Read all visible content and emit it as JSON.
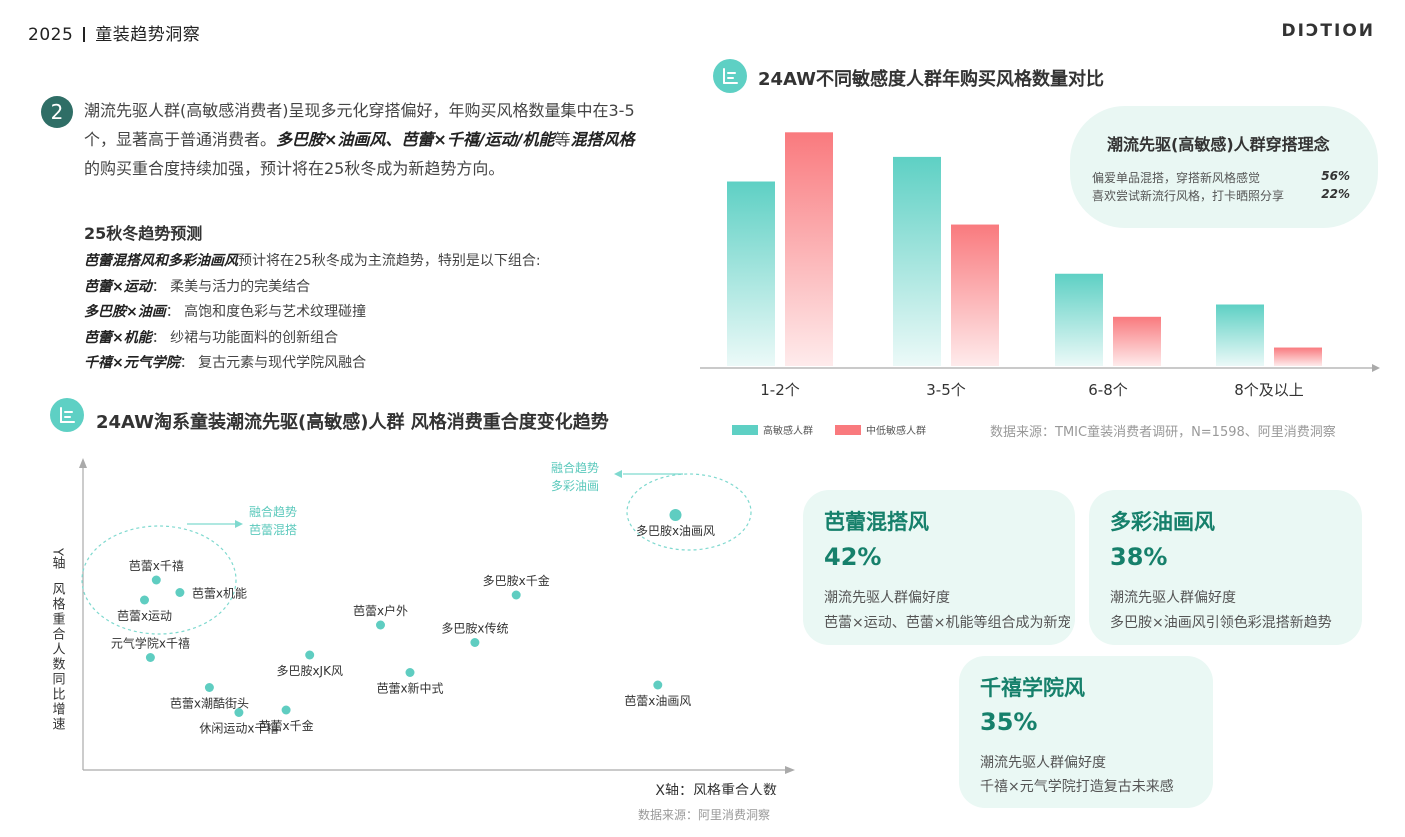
{
  "header": {
    "year": "2025",
    "section": "童装趋势洞察",
    "brand": "DIƆTIOИ"
  },
  "intro": {
    "badge": "2",
    "text_1": "潮流先驱人群(高敏感消费者)呈现多元化穿搭偏好，年购买风格数量集中在3-5个，显著高于普通消费者。",
    "bold_1": "多巴胺×油画风、芭蕾×千禧/运动/机能",
    "text_2": "等",
    "bold_2": "混搭风格",
    "text_3": "的购买重合度持续加强，预计将在25秋冬成为新趋势方向。"
  },
  "forecast": {
    "title": "25秋冬趋势预测",
    "lead_bold": "芭蕾混搭风和多彩油画风",
    "lead_text": "预计将在25秋冬成为主流趋势，特别是以下组合:",
    "items": [
      {
        "name": "芭蕾×运动",
        "desc": "：  柔美与活力的完美结合"
      },
      {
        "name": "多巴胺×油画",
        "desc": "：  高饱和度色彩与艺术纹理碰撞"
      },
      {
        "name": "芭蕾×机能",
        "desc": "：  纱裙与功能面料的创新组合"
      },
      {
        "name": "千禧×元气学院",
        "desc": "：  复古元素与现代学院风融合"
      }
    ]
  },
  "bar_section": {
    "title": "24AW不同敏感度人群年购买风格数量对比",
    "source": "数据来源：TMIC童装消费者调研，N=1598、阿里消费洞察"
  },
  "scatter_section": {
    "title": "24AW淘系童装潮流先驱(高敏感)人群 风格消费重合度变化趋势",
    "source": "数据来源：阿里消费洞察"
  },
  "concept": {
    "title": "潮流先驱(高敏感)人群穿搭理念",
    "rows": [
      {
        "text": "偏爱单品混搭，穿搭新风格感觉",
        "pct": "56%"
      },
      {
        "text": "喜欢尝试新流行风格，打卡晒照分享",
        "pct": "22%"
      }
    ]
  },
  "cards": [
    {
      "title": "芭蕾混搭风",
      "pct": "42%",
      "line1": "潮流先驱人群偏好度",
      "line2": "芭蕾×运动、芭蕾×机能等组合成为新宠"
    },
    {
      "title": "多彩油画风",
      "pct": "38%",
      "line1": "潮流先驱人群偏好度",
      "line2": "多巴胺×油画风引领色彩混搭新趋势"
    },
    {
      "title": "千禧学院风",
      "pct": "35%",
      "line1": "潮流先驱人群偏好度",
      "line2": "千禧×元气学院打造复古未来感"
    }
  ],
  "colors": {
    "teal": "#5ed0c4",
    "pink": "#f97a7e",
    "dark_green": "#16806b",
    "point": "#5fcdc1"
  },
  "chart_data": [
    {
      "type": "bar",
      "title": "24AW不同敏感度人群年购买风格数量对比",
      "categories": [
        "1-2个",
        "3-5个",
        "6-8个",
        "8个及以上"
      ],
      "series": [
        {
          "name": "高敏感人群",
          "color": "#5ed0c4",
          "values": [
            30,
            34,
            15,
            10
          ]
        },
        {
          "name": "中低敏感人群",
          "color": "#f97a7e",
          "values": [
            38,
            23,
            8,
            3
          ]
        }
      ],
      "ylim": [
        0,
        40
      ],
      "grid": false,
      "legend": "bottom-left"
    },
    {
      "type": "scatter",
      "title": "24AW淘系童装潮流先驱(高敏感)人群 风格消费重合度变化趋势",
      "xlabel": "X轴：风格重合人数",
      "ylabel": "Y轴",
      "ylabel_sub": "风格重合人数同比增速",
      "grid": false,
      "points": [
        {
          "label": "芭蕾x千禧",
          "x": 7,
          "y": 68,
          "side": "above"
        },
        {
          "label": "芭蕾x机能",
          "x": 11,
          "y": 63,
          "side": "right"
        },
        {
          "label": "芭蕾x运动",
          "x": 5,
          "y": 60,
          "side": "below"
        },
        {
          "label": "元气学院x千禧",
          "x": 6,
          "y": 37,
          "side": "above"
        },
        {
          "label": "多巴胺xJK风",
          "x": 33,
          "y": 38,
          "side": "below"
        },
        {
          "label": "芭蕾x潮酷街头",
          "x": 16,
          "y": 25,
          "side": "below"
        },
        {
          "label": "休闲运动x千禧",
          "x": 21,
          "y": 15,
          "side": "below"
        },
        {
          "label": "芭蕾x千金",
          "x": 29,
          "y": 16,
          "side": "below"
        },
        {
          "label": "芭蕾x户外",
          "x": 45,
          "y": 50,
          "side": "above"
        },
        {
          "label": "芭蕾x新中式",
          "x": 50,
          "y": 31,
          "side": "below"
        },
        {
          "label": "多巴胺x传统",
          "x": 61,
          "y": 43,
          "side": "above"
        },
        {
          "label": "多巴胺x千金",
          "x": 68,
          "y": 62,
          "side": "above"
        },
        {
          "label": "芭蕾x油画风",
          "x": 92,
          "y": 26,
          "side": "below"
        },
        {
          "label": "多巴胺x油画风",
          "x": 95,
          "y": 94,
          "side": "below"
        }
      ],
      "annotations": [
        {
          "text": "融合趋势",
          "text2": "芭蕾混搭",
          "target": "left-cluster"
        },
        {
          "text": "融合趋势",
          "text2": "多彩油画",
          "target": "right-cluster"
        }
      ]
    }
  ]
}
